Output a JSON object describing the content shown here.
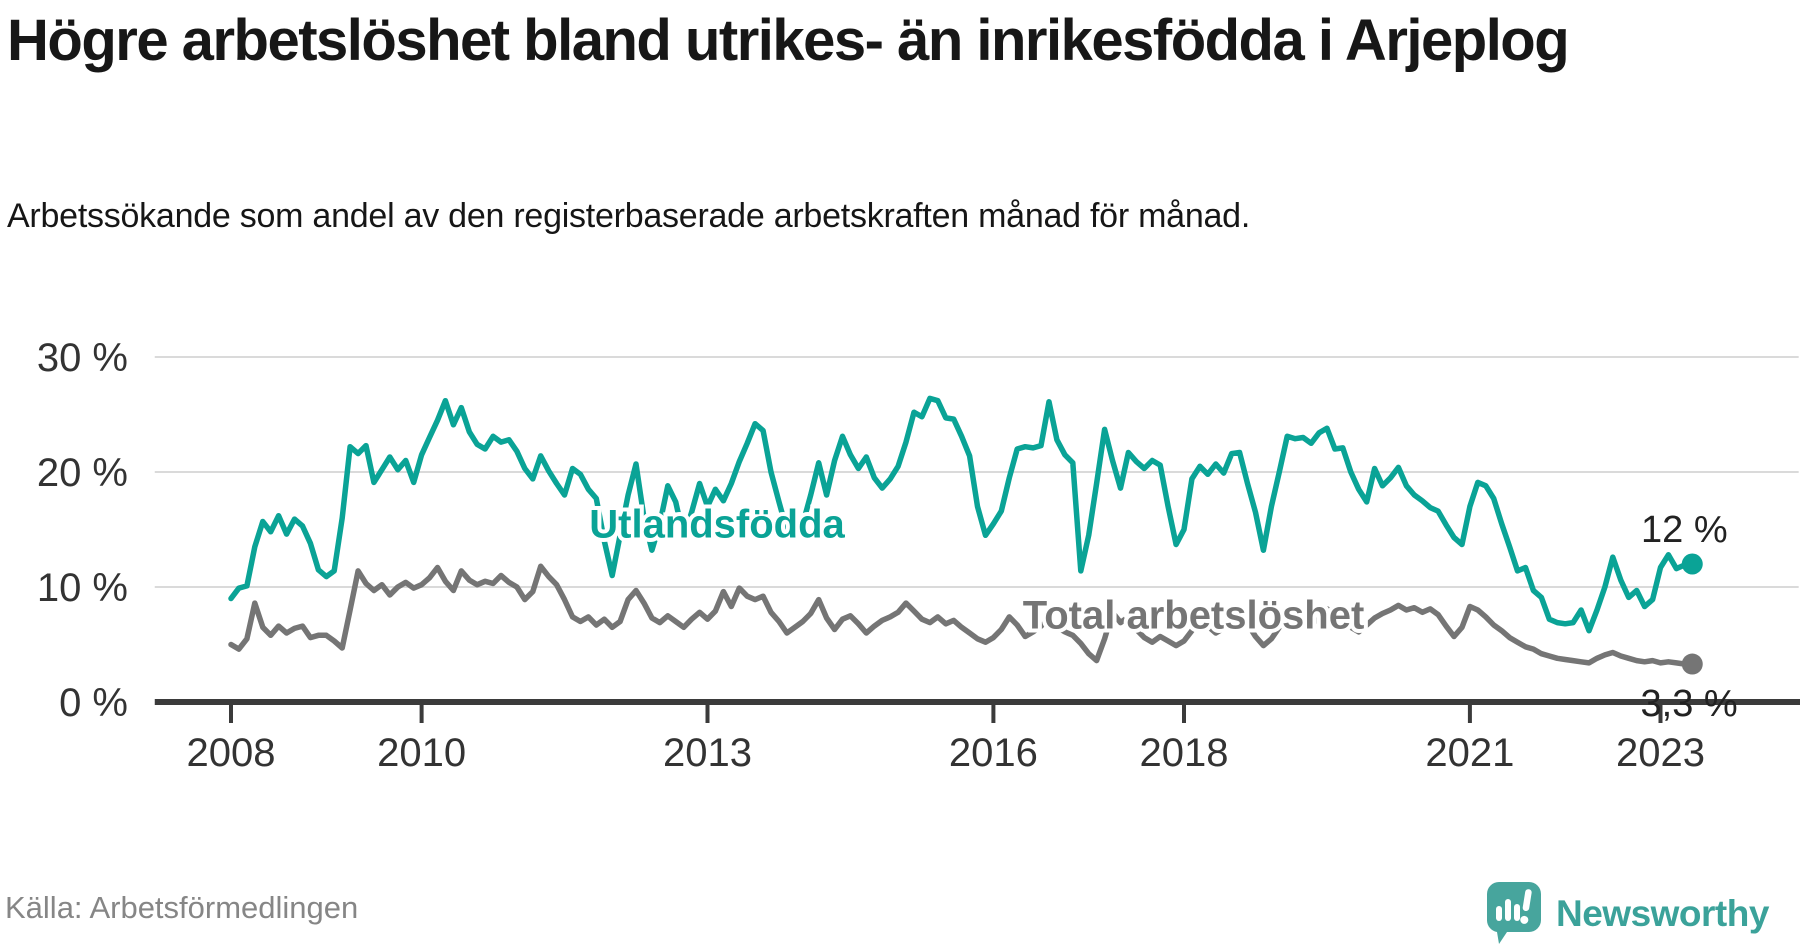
{
  "header": {
    "title": "Högre arbetslöshet bland utrikes- än inrikesfödda i Arjeplog",
    "subtitle": "Arbetssökande som andel av den registerbaserade arbetskraften månad för månad."
  },
  "footer": {
    "source": "Källa: Arbetsförmedlingen",
    "brand": "Newsworthy"
  },
  "colors": {
    "series_teal": "#0aa396",
    "series_gray": "#757575",
    "axis": "#3b3b3b",
    "grid": "#dadada",
    "tick_text": "#333333",
    "value_text": "#222222",
    "brand_teal": "#47a59d"
  },
  "chart_data": {
    "type": "line",
    "title": "Högre arbetslöshet bland utrikes- än inrikesfödda i Arjeplog",
    "subtitle": "Arbetssökande som andel av den registerbaserade arbetskraften månad för månad.",
    "x_unit": "month",
    "start": {
      "year": 2008,
      "month": 1
    },
    "end": {
      "year": 2023,
      "month": 5
    },
    "xlim": [
      2007.2,
      2024.45
    ],
    "ylim": [
      0,
      30
    ],
    "grid": "horizontal-only",
    "legend": "inline-labels",
    "ylabel": "",
    "xlabel": "",
    "y_ticks": [
      {
        "value": 30,
        "label": "30 %"
      },
      {
        "value": 20,
        "label": "20 %"
      },
      {
        "value": 10,
        "label": "10 %"
      },
      {
        "value": 0,
        "label": "0 %"
      }
    ],
    "x_ticks": [
      {
        "value": 2008,
        "label": "2008"
      },
      {
        "value": 2010,
        "label": "2010"
      },
      {
        "value": 2013,
        "label": "2013"
      },
      {
        "value": 2016,
        "label": "2016"
      },
      {
        "value": 2018,
        "label": "2018"
      },
      {
        "value": 2021,
        "label": "2021"
      },
      {
        "value": 2023,
        "label": "2023"
      }
    ],
    "series": [
      {
        "name": "Total arbetslöshet",
        "color": "#757575",
        "line_width": 5.5,
        "end_dot": true,
        "end_label": "3,3 %",
        "values": [
          5.0,
          4.6,
          5.5,
          8.6,
          6.5,
          5.8,
          6.6,
          6.0,
          6.4,
          6.6,
          5.6,
          5.8,
          5.8,
          5.3,
          4.7,
          8.0,
          11.4,
          10.3,
          9.7,
          10.2,
          9.3,
          10.0,
          10.4,
          9.9,
          10.2,
          10.8,
          11.7,
          10.5,
          9.7,
          11.4,
          10.6,
          10.2,
          10.5,
          10.3,
          11.0,
          10.4,
          10.0,
          8.9,
          9.6,
          11.8,
          10.9,
          10.2,
          8.9,
          7.4,
          7.0,
          7.4,
          6.7,
          7.2,
          6.5,
          7.0,
          8.9,
          9.7,
          8.6,
          7.3,
          6.9,
          7.5,
          7.0,
          6.5,
          7.2,
          7.8,
          7.2,
          7.9,
          9.6,
          8.3,
          9.9,
          9.2,
          8.9,
          9.2,
          7.8,
          7.0,
          6.0,
          6.5,
          7.0,
          7.7,
          8.9,
          7.3,
          6.3,
          7.2,
          7.5,
          6.8,
          6.0,
          6.6,
          7.1,
          7.4,
          7.8,
          8.6,
          7.9,
          7.2,
          6.9,
          7.4,
          6.8,
          7.1,
          6.5,
          6.0,
          5.5,
          5.2,
          5.6,
          6.3,
          7.4,
          6.7,
          5.7,
          6.1,
          6.6,
          7.2,
          6.5,
          6.1,
          5.8,
          5.1,
          4.2,
          3.6,
          5.5,
          7.8,
          6.9,
          7.4,
          6.3,
          5.6,
          5.2,
          5.7,
          5.3,
          4.9,
          5.3,
          6.2,
          7.2,
          6.6,
          6.0,
          6.4,
          7.1,
          7.7,
          6.8,
          5.7,
          4.9,
          5.5,
          6.5,
          7.4,
          7.0,
          7.4,
          6.8,
          7.2,
          8.1,
          7.6,
          7.0,
          6.5,
          6.1,
          6.7,
          7.3,
          7.7,
          8.0,
          8.4,
          8.0,
          8.2,
          7.8,
          8.1,
          7.6,
          6.6,
          5.7,
          6.5,
          8.3,
          8.0,
          7.4,
          6.7,
          6.2,
          5.6,
          5.2,
          4.8,
          4.6,
          4.2,
          4.0,
          3.8,
          3.7,
          3.6,
          3.5,
          3.4,
          3.8,
          4.1,
          4.3,
          4.0,
          3.8,
          3.6,
          3.5,
          3.6,
          3.4,
          3.5,
          3.4,
          3.3,
          3.3
        ]
      },
      {
        "name": "Utlandsfödda",
        "color": "#0aa396",
        "line_width": 5.5,
        "end_dot": true,
        "end_label": "12 %",
        "values": [
          9.0,
          9.9,
          10.1,
          13.5,
          15.7,
          14.8,
          16.2,
          14.6,
          15.9,
          15.3,
          13.8,
          11.5,
          10.9,
          11.4,
          16.0,
          22.2,
          21.6,
          22.3,
          19.1,
          20.2,
          21.3,
          20.2,
          21.0,
          19.1,
          21.5,
          23.0,
          24.5,
          26.2,
          24.1,
          25.6,
          23.5,
          22.4,
          22.0,
          23.1,
          22.6,
          22.8,
          21.8,
          20.3,
          19.4,
          21.4,
          20.1,
          19.0,
          18.0,
          20.3,
          19.8,
          18.5,
          17.7,
          14.0,
          11.0,
          14.5,
          18.0,
          20.7,
          16.0,
          13.2,
          15.5,
          18.8,
          17.4,
          14.3,
          16.5,
          19.0,
          17.0,
          18.5,
          17.5,
          19.0,
          20.9,
          22.5,
          24.2,
          23.6,
          20.0,
          17.4,
          14.9,
          14.3,
          15.5,
          18.0,
          20.8,
          18.0,
          21.0,
          23.1,
          21.5,
          20.3,
          21.3,
          19.5,
          18.6,
          19.4,
          20.5,
          22.6,
          25.2,
          24.8,
          26.4,
          26.2,
          24.7,
          24.6,
          23.1,
          21.4,
          17.0,
          14.5,
          15.5,
          16.6,
          19.5,
          22.0,
          22.2,
          22.1,
          22.3,
          26.1,
          22.8,
          21.5,
          20.8,
          11.4,
          14.5,
          19.0,
          23.7,
          21.0,
          18.6,
          21.7,
          20.9,
          20.3,
          21.0,
          20.6,
          17.0,
          13.7,
          15.0,
          19.4,
          20.5,
          19.8,
          20.7,
          19.9,
          21.6,
          21.7,
          19.0,
          16.5,
          13.2,
          17.0,
          20.0,
          23.1,
          22.9,
          23.0,
          22.5,
          23.4,
          23.8,
          22.0,
          22.1,
          20.0,
          18.5,
          17.4,
          20.3,
          18.8,
          19.5,
          20.4,
          18.8,
          18.0,
          17.5,
          16.9,
          16.6,
          15.4,
          14.3,
          13.7,
          17.0,
          19.1,
          18.8,
          17.7,
          15.5,
          13.5,
          11.4,
          11.7,
          9.7,
          9.1,
          7.2,
          6.9,
          6.8,
          6.9,
          8.0,
          6.2,
          8.0,
          10.0,
          12.6,
          10.6,
          9.1,
          9.7,
          8.3,
          8.9,
          11.7,
          12.8,
          11.6,
          11.9,
          12.0
        ]
      }
    ],
    "annotations": [
      {
        "text": "Utlandsfödda",
        "t": 2013.1,
        "p": 14.3,
        "color": "#0aa396",
        "weight": "bold",
        "size": 40,
        "anchor": "middle",
        "halo": 8
      },
      {
        "text": "Total arbetslöshet",
        "t": 2018.1,
        "p": 6.4,
        "color": "#757575",
        "weight": "bold",
        "size": 40,
        "anchor": "middle",
        "halo": 8
      },
      {
        "text": "12 %",
        "t": 2023.25,
        "p": 13.9,
        "color": "#222222",
        "weight": "normal",
        "size": 38,
        "anchor": "middle",
        "halo": 0
      },
      {
        "text": "3,3 %",
        "t": 2023.3,
        "p": -1.2,
        "color": "#222222",
        "weight": "normal",
        "size": 38,
        "anchor": "middle",
        "halo": 0
      }
    ]
  }
}
